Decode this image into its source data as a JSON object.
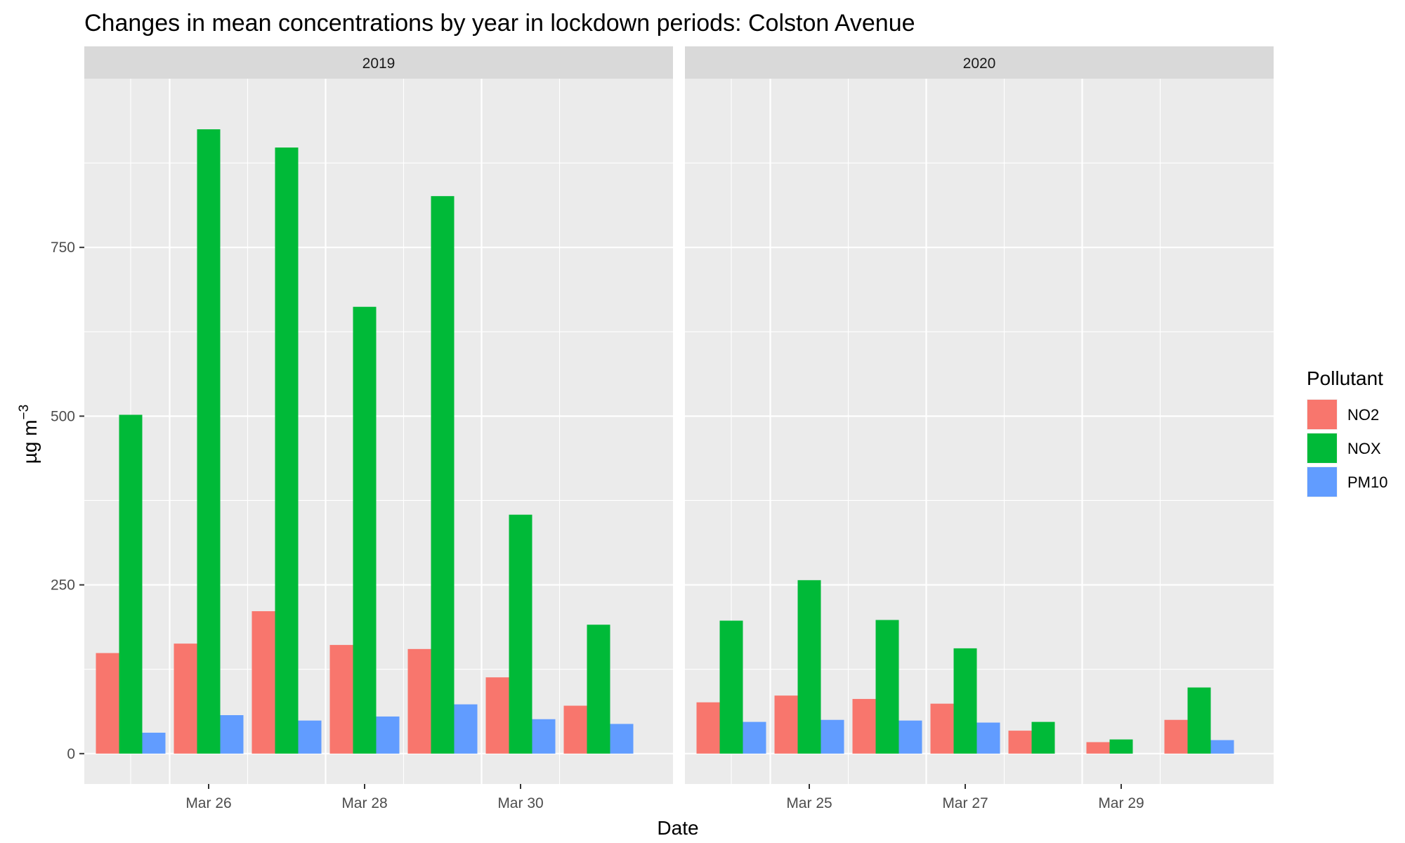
{
  "chart_data": {
    "type": "bar",
    "title": "Changes in mean concentrations by year in lockdown periods: Colston Avenue",
    "xlabel": "Date",
    "ylabel": "µg m",
    "ylabel_superscript": "−3",
    "ylim": [
      -45,
      1000
    ],
    "yticks": [
      0,
      250,
      500,
      750
    ],
    "grid": true,
    "legend": {
      "title": "Pollutant",
      "position": "right",
      "entries": [
        {
          "name": "NO2",
          "color": "#F8766D"
        },
        {
          "name": "NOX",
          "color": "#00BA38"
        },
        {
          "name": "PM10",
          "color": "#619CFF"
        }
      ]
    },
    "panels": [
      {
        "strip": "2019",
        "categories": [
          "Mar 25",
          "Mar 26",
          "Mar 27",
          "Mar 28",
          "Mar 29",
          "Mar 30",
          "Mar 31"
        ],
        "xticks": [
          "Mar 26",
          "Mar 28",
          "Mar 30"
        ],
        "series": [
          {
            "name": "NO2",
            "values": [
              149,
              163,
              211,
              161,
              155,
              113,
              71
            ]
          },
          {
            "name": "NOX",
            "values": [
              502,
              925,
              898,
              662,
              826,
              354,
              191
            ]
          },
          {
            "name": "PM10",
            "values": [
              31,
              57,
              49,
              55,
              73,
              51,
              44
            ]
          }
        ]
      },
      {
        "strip": "2020",
        "categories": [
          "Mar 24",
          "Mar 25",
          "Mar 26",
          "Mar 27",
          "Mar 28",
          "Mar 29",
          "Mar 30"
        ],
        "xticks": [
          "Mar 25",
          "Mar 27",
          "Mar 29"
        ],
        "series": [
          {
            "name": "NO2",
            "values": [
              76,
              86,
              81,
              74,
              34,
              17,
              50
            ]
          },
          {
            "name": "NOX",
            "values": [
              197,
              257,
              198,
              156,
              47,
              21,
              98
            ]
          },
          {
            "name": "PM10",
            "values": [
              47,
              50,
              49,
              46,
              null,
              null,
              20
            ]
          }
        ]
      }
    ]
  }
}
